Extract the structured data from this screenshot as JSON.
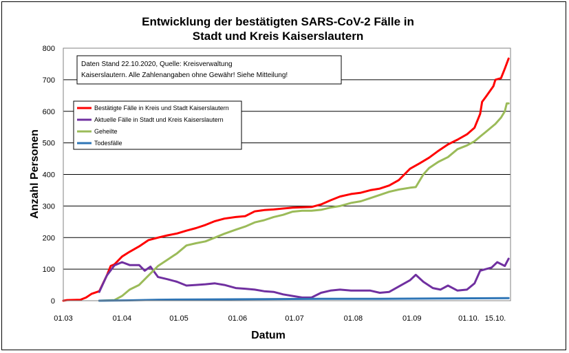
{
  "chart_data": {
    "type": "line",
    "title": [
      "Entwicklung der bestätigten SARS-CoV-2 Fälle in",
      "Stadt und Kreis Kaiserslautern"
    ],
    "xlabel": "Datum",
    "ylabel": "Anzahl Personen",
    "ylim": [
      0,
      800
    ],
    "yticks": [
      0,
      100,
      200,
      300,
      400,
      500,
      600,
      700,
      800
    ],
    "xlim": [
      "2020-03-01",
      "2020-10-23"
    ],
    "xticks": [
      {
        "date": "2020-03-01",
        "label": "01.03"
      },
      {
        "date": "2020-04-01",
        "label": "01.04"
      },
      {
        "date": "2020-05-01",
        "label": "01.05"
      },
      {
        "date": "2020-06-01",
        "label": "01.06"
      },
      {
        "date": "2020-07-01",
        "label": "01.07"
      },
      {
        "date": "2020-08-01",
        "label": "01.08"
      },
      {
        "date": "2020-09-01",
        "label": "01.09"
      },
      {
        "date": "2020-10-01",
        "label": "01.10."
      },
      {
        "date": "2020-10-15",
        "label": "15.10."
      }
    ],
    "grid": "horizontal",
    "legend_placement": "upper-left",
    "note": [
      "Daten Stand 22.10.2020, Quelle: Kreisverwaltung",
      "Kaiserslautern. Alle Zahlenangaben ohne Gewähr! Siehe Mitteilung!"
    ],
    "series": [
      {
        "name": "Bestätigte Fälle in Kreis und Stadt Kaiserslautern",
        "color": "#ff0000",
        "points": [
          [
            "2020-03-01",
            0
          ],
          [
            "2020-03-03",
            2
          ],
          [
            "2020-03-10",
            3
          ],
          [
            "2020-03-13",
            10
          ],
          [
            "2020-03-16",
            22
          ],
          [
            "2020-03-20",
            30
          ],
          [
            "2020-03-24",
            80
          ],
          [
            "2020-03-26",
            110
          ],
          [
            "2020-03-28",
            115
          ],
          [
            "2020-04-01",
            140
          ],
          [
            "2020-04-05",
            155
          ],
          [
            "2020-04-10",
            172
          ],
          [
            "2020-04-15",
            192
          ],
          [
            "2020-04-20",
            200
          ],
          [
            "2020-04-25",
            207
          ],
          [
            "2020-04-30",
            213
          ],
          [
            "2020-05-05",
            222
          ],
          [
            "2020-05-10",
            230
          ],
          [
            "2020-05-15",
            240
          ],
          [
            "2020-05-20",
            252
          ],
          [
            "2020-05-25",
            260
          ],
          [
            "2020-05-31",
            265
          ],
          [
            "2020-06-05",
            268
          ],
          [
            "2020-06-10",
            283
          ],
          [
            "2020-06-15",
            287
          ],
          [
            "2020-06-20",
            289
          ],
          [
            "2020-06-25",
            292
          ],
          [
            "2020-06-30",
            295
          ],
          [
            "2020-07-05",
            296
          ],
          [
            "2020-07-10",
            297
          ],
          [
            "2020-07-15",
            305
          ],
          [
            "2020-07-20",
            318
          ],
          [
            "2020-07-25",
            330
          ],
          [
            "2020-07-31",
            338
          ],
          [
            "2020-08-05",
            342
          ],
          [
            "2020-08-10",
            350
          ],
          [
            "2020-08-15",
            355
          ],
          [
            "2020-08-20",
            365
          ],
          [
            "2020-08-25",
            382
          ],
          [
            "2020-08-31",
            418
          ],
          [
            "2020-09-05",
            435
          ],
          [
            "2020-09-10",
            453
          ],
          [
            "2020-09-15",
            475
          ],
          [
            "2020-09-20",
            495
          ],
          [
            "2020-09-25",
            510
          ],
          [
            "2020-09-30",
            527
          ],
          [
            "2020-10-04",
            548
          ],
          [
            "2020-10-07",
            592
          ],
          [
            "2020-10-08",
            630
          ],
          [
            "2020-10-10",
            646
          ],
          [
            "2020-10-14",
            680
          ],
          [
            "2020-10-15",
            700
          ],
          [
            "2020-10-18",
            705
          ],
          [
            "2020-10-20",
            735
          ],
          [
            "2020-10-22",
            767
          ]
        ]
      },
      {
        "name": "Aktuelle Fälle in Stadt und Kreis Kaiserslautern",
        "color": "#7030a0",
        "points": [
          [
            "2020-03-20",
            28
          ],
          [
            "2020-03-24",
            80
          ],
          [
            "2020-03-28",
            112
          ],
          [
            "2020-04-01",
            122
          ],
          [
            "2020-04-05",
            113
          ],
          [
            "2020-04-10",
            113
          ],
          [
            "2020-04-13",
            95
          ],
          [
            "2020-04-16",
            108
          ],
          [
            "2020-04-20",
            75
          ],
          [
            "2020-04-25",
            68
          ],
          [
            "2020-04-30",
            60
          ],
          [
            "2020-05-05",
            48
          ],
          [
            "2020-05-10",
            50
          ],
          [
            "2020-05-15",
            52
          ],
          [
            "2020-05-20",
            55
          ],
          [
            "2020-05-25",
            50
          ],
          [
            "2020-05-31",
            40
          ],
          [
            "2020-06-05",
            38
          ],
          [
            "2020-06-10",
            35
          ],
          [
            "2020-06-15",
            30
          ],
          [
            "2020-06-20",
            28
          ],
          [
            "2020-06-25",
            20
          ],
          [
            "2020-06-30",
            15
          ],
          [
            "2020-07-05",
            10
          ],
          [
            "2020-07-10",
            10
          ],
          [
            "2020-07-15",
            25
          ],
          [
            "2020-07-20",
            32
          ],
          [
            "2020-07-25",
            35
          ],
          [
            "2020-07-31",
            32
          ],
          [
            "2020-08-05",
            32
          ],
          [
            "2020-08-10",
            32
          ],
          [
            "2020-08-15",
            25
          ],
          [
            "2020-08-20",
            28
          ],
          [
            "2020-08-25",
            45
          ],
          [
            "2020-08-31",
            65
          ],
          [
            "2020-09-03",
            82
          ],
          [
            "2020-09-07",
            60
          ],
          [
            "2020-09-12",
            40
          ],
          [
            "2020-09-16",
            35
          ],
          [
            "2020-09-20",
            48
          ],
          [
            "2020-09-25",
            32
          ],
          [
            "2020-09-30",
            35
          ],
          [
            "2020-10-04",
            55
          ],
          [
            "2020-10-07",
            95
          ],
          [
            "2020-10-10",
            100
          ],
          [
            "2020-10-13",
            105
          ],
          [
            "2020-10-16",
            122
          ],
          [
            "2020-10-20",
            110
          ],
          [
            "2020-10-22",
            133
          ]
        ]
      },
      {
        "name": "Geheilte",
        "color": "#9bbb59",
        "points": [
          [
            "2020-03-20",
            0
          ],
          [
            "2020-03-28",
            2
          ],
          [
            "2020-04-01",
            15
          ],
          [
            "2020-04-05",
            35
          ],
          [
            "2020-04-10",
            50
          ],
          [
            "2020-04-15",
            80
          ],
          [
            "2020-04-20",
            110
          ],
          [
            "2020-04-25",
            130
          ],
          [
            "2020-04-30",
            150
          ],
          [
            "2020-05-05",
            175
          ],
          [
            "2020-05-10",
            182
          ],
          [
            "2020-05-15",
            188
          ],
          [
            "2020-05-20",
            200
          ],
          [
            "2020-05-25",
            212
          ],
          [
            "2020-05-31",
            225
          ],
          [
            "2020-06-05",
            235
          ],
          [
            "2020-06-10",
            248
          ],
          [
            "2020-06-15",
            255
          ],
          [
            "2020-06-20",
            265
          ],
          [
            "2020-06-25",
            272
          ],
          [
            "2020-06-30",
            282
          ],
          [
            "2020-07-05",
            285
          ],
          [
            "2020-07-10",
            285
          ],
          [
            "2020-07-15",
            288
          ],
          [
            "2020-07-20",
            295
          ],
          [
            "2020-07-25",
            300
          ],
          [
            "2020-07-31",
            310
          ],
          [
            "2020-08-05",
            315
          ],
          [
            "2020-08-10",
            325
          ],
          [
            "2020-08-15",
            335
          ],
          [
            "2020-08-20",
            345
          ],
          [
            "2020-08-25",
            352
          ],
          [
            "2020-08-31",
            358
          ],
          [
            "2020-09-03",
            360
          ],
          [
            "2020-09-07",
            400
          ],
          [
            "2020-09-10",
            420
          ],
          [
            "2020-09-15",
            440
          ],
          [
            "2020-09-20",
            455
          ],
          [
            "2020-09-25",
            480
          ],
          [
            "2020-09-30",
            492
          ],
          [
            "2020-10-04",
            505
          ],
          [
            "2020-10-07",
            520
          ],
          [
            "2020-10-10",
            535
          ],
          [
            "2020-10-15",
            560
          ],
          [
            "2020-10-18",
            580
          ],
          [
            "2020-10-20",
            600
          ],
          [
            "2020-10-21",
            625
          ],
          [
            "2020-10-22",
            625
          ]
        ]
      },
      {
        "name": "Todesfälle",
        "color": "#2e75b6",
        "points": [
          [
            "2020-03-20",
            0
          ],
          [
            "2020-04-05",
            1
          ],
          [
            "2020-04-20",
            3
          ],
          [
            "2020-05-10",
            4
          ],
          [
            "2020-06-15",
            5
          ],
          [
            "2020-07-15",
            6
          ],
          [
            "2020-08-15",
            6
          ],
          [
            "2020-09-15",
            7
          ],
          [
            "2020-10-22",
            8
          ]
        ]
      }
    ]
  }
}
